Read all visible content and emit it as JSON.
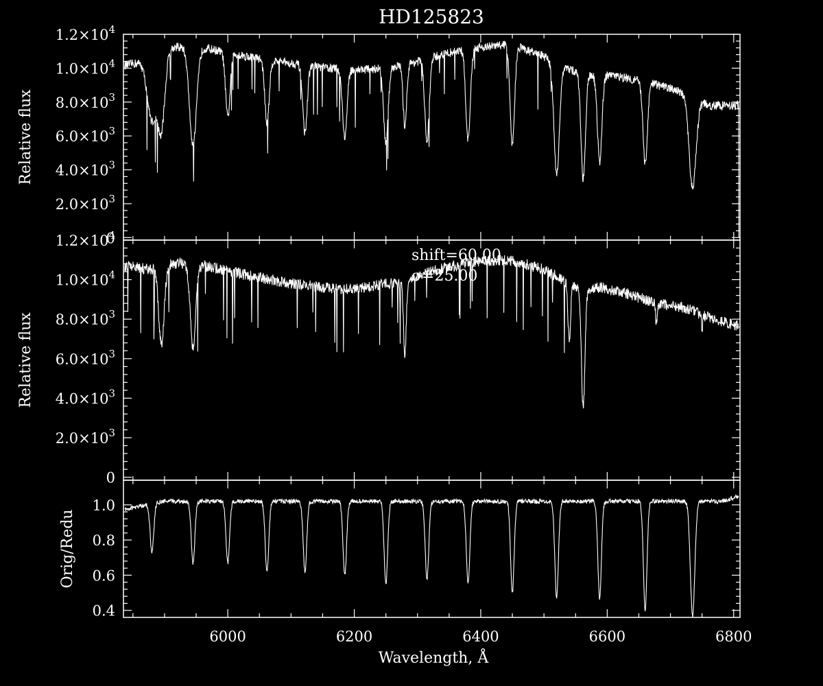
{
  "chart_data": {
    "type": "line",
    "title": "HD125823",
    "colors": {
      "background": "#000000",
      "foreground": "#ffffff"
    },
    "xlabel": "Wavelength, Å",
    "xlim": [
      5835,
      6810
    ],
    "xticks": [
      6000,
      6200,
      6400,
      6600,
      6800
    ],
    "panels": [
      {
        "id": "top",
        "ylabel": "Relative flux",
        "ylim": [
          -150,
          12000
        ],
        "yticks": [
          {
            "v": 0,
            "m": "0",
            "e": ""
          },
          {
            "v": 2000,
            "m": "2.0×10",
            "e": "3"
          },
          {
            "v": 4000,
            "m": "4.0×10",
            "e": "3"
          },
          {
            "v": 6000,
            "m": "6.0×10",
            "e": "3"
          },
          {
            "v": 8000,
            "m": "8.0×10",
            "e": "3"
          },
          {
            "v": 10000,
            "m": "1.0×10",
            "e": "4"
          },
          {
            "v": 12000,
            "m": "1.2×10",
            "e": "4"
          }
        ],
        "series": [
          {
            "continuum": [
              [
                5835,
                10150
              ],
              [
                5870,
                10400
              ],
              [
                5900,
                11200
              ],
              [
                5950,
                11300
              ],
              [
                6000,
                10900
              ],
              [
                6060,
                10500
              ],
              [
                6100,
                10300
              ],
              [
                6160,
                10000
              ],
              [
                6200,
                9900
              ],
              [
                6250,
                10000
              ],
              [
                6290,
                10300
              ],
              [
                6330,
                10700
              ],
              [
                6360,
                11000
              ],
              [
                6390,
                11200
              ],
              [
                6420,
                11300
              ],
              [
                6450,
                11450
              ],
              [
                6470,
                11100
              ],
              [
                6500,
                10700
              ],
              [
                6520,
                10200
              ],
              [
                6550,
                9800
              ],
              [
                6580,
                9600
              ],
              [
                6620,
                9500
              ],
              [
                6660,
                9200
              ],
              [
                6700,
                8800
              ],
              [
                6740,
                8300
              ],
              [
                6760,
                7800
              ],
              [
                6810,
                7800
              ]
            ],
            "dips": [
              [
                5880,
                7000,
                10
              ],
              [
                5895,
                6500,
                8
              ],
              [
                5945,
                5400,
                8
              ],
              [
                6000,
                7100,
                5
              ],
              [
                6062,
                6800,
                5
              ],
              [
                6122,
                6200,
                5
              ],
              [
                6185,
                5900,
                5
              ],
              [
                6250,
                5500,
                5
              ],
              [
                6280,
                6600,
                4
              ],
              [
                6315,
                5700,
                5
              ],
              [
                6380,
                5700,
                5
              ],
              [
                6450,
                5500,
                5
              ],
              [
                6520,
                3700,
                6
              ],
              [
                6562,
                3500,
                5
              ],
              [
                6588,
                4500,
                5
              ],
              [
                6660,
                4300,
                5
              ],
              [
                6735,
                3000,
                8
              ]
            ],
            "noise": 260,
            "endDrop": [
              6808,
              0
            ]
          }
        ]
      },
      {
        "id": "middle",
        "ylabel": "Relative flux",
        "ylim": [
          -150,
          12000
        ],
        "yticks": [
          {
            "v": 0,
            "m": "0",
            "e": ""
          },
          {
            "v": 2000,
            "m": "2.0×10",
            "e": "3"
          },
          {
            "v": 4000,
            "m": "4.0×10",
            "e": "3"
          },
          {
            "v": 6000,
            "m": "6.0×10",
            "e": "3"
          },
          {
            "v": 8000,
            "m": "8.0×10",
            "e": "3"
          },
          {
            "v": 10000,
            "m": "1.0×10",
            "e": "4"
          },
          {
            "v": 12000,
            "m": "1.2×10",
            "e": "4"
          }
        ],
        "annotations": [
          "shift=60.00",
          "σ=25.00"
        ],
        "series": [
          {
            "continuum": [
              [
                5835,
                10700
              ],
              [
                5880,
                10500
              ],
              [
                5920,
                10850
              ],
              [
                5960,
                10700
              ],
              [
                6000,
                10450
              ],
              [
                6050,
                10100
              ],
              [
                6100,
                9800
              ],
              [
                6150,
                9600
              ],
              [
                6200,
                9500
              ],
              [
                6250,
                9800
              ],
              [
                6280,
                9800
              ],
              [
                6320,
                10400
              ],
              [
                6360,
                10700
              ],
              [
                6400,
                10950
              ],
              [
                6440,
                11000
              ],
              [
                6470,
                10800
              ],
              [
                6500,
                10500
              ],
              [
                6530,
                10000
              ],
              [
                6560,
                9500
              ],
              [
                6590,
                9600
              ],
              [
                6630,
                9300
              ],
              [
                6680,
                8800
              ],
              [
                6720,
                8600
              ],
              [
                6760,
                8100
              ],
              [
                6810,
                7600
              ]
            ],
            "dips": [
              [
                5895,
                6700,
                6
              ],
              [
                5945,
                6600,
                6
              ],
              [
                6280,
                6200,
                3
              ],
              [
                6540,
                7000,
                3
              ],
              [
                6562,
                3500,
                4
              ],
              [
                6678,
                7700,
                2
              ],
              [
                6750,
                7600,
                2
              ]
            ],
            "noise": 280,
            "endDrop": null
          }
        ]
      },
      {
        "id": "bottom",
        "ylabel": "Orig/Redu",
        "ylim": [
          0.36,
          1.14
        ],
        "yticks": [
          {
            "v": 0.4,
            "m": "0.4",
            "e": ""
          },
          {
            "v": 0.6,
            "m": "0.6",
            "e": ""
          },
          {
            "v": 0.8,
            "m": "0.8",
            "e": ""
          },
          {
            "v": 1.0,
            "m": "1.0",
            "e": ""
          }
        ],
        "series": [
          {
            "continuum": [
              [
                5835,
                0.97
              ],
              [
                5870,
                1.0
              ],
              [
                5900,
                1.02
              ],
              [
                6000,
                1.02
              ],
              [
                6100,
                1.02
              ],
              [
                6200,
                1.02
              ],
              [
                6300,
                1.02
              ],
              [
                6400,
                1.02
              ],
              [
                6500,
                1.02
              ],
              [
                6600,
                1.02
              ],
              [
                6700,
                1.02
              ],
              [
                6780,
                1.02
              ],
              [
                6810,
                1.05
              ]
            ],
            "dips": [
              [
                5880,
                0.73,
                4
              ],
              [
                5945,
                0.67,
                4
              ],
              [
                6000,
                0.67,
                4
              ],
              [
                6062,
                0.62,
                4
              ],
              [
                6122,
                0.62,
                4
              ],
              [
                6185,
                0.6,
                4
              ],
              [
                6250,
                0.55,
                4
              ],
              [
                6315,
                0.58,
                4
              ],
              [
                6380,
                0.56,
                4
              ],
              [
                6450,
                0.5,
                4
              ],
              [
                6520,
                0.47,
                4
              ],
              [
                6588,
                0.47,
                4
              ],
              [
                6660,
                0.4,
                4
              ],
              [
                6735,
                0.37,
                5
              ]
            ],
            "noise": 0.012,
            "endDrop": null
          }
        ]
      }
    ]
  }
}
